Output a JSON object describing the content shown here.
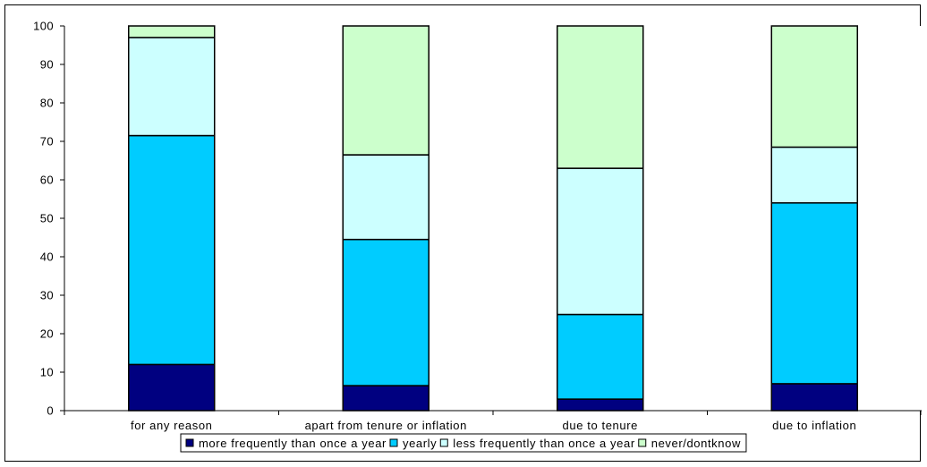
{
  "chart_data": {
    "type": "bar",
    "stacked": true,
    "categories": [
      "for any reason",
      "apart from tenure or inflation",
      "due to tenure",
      "due to inflation"
    ],
    "series": [
      {
        "name": "more frequently than once a year",
        "values": [
          12,
          6.5,
          3,
          7
        ],
        "color": "#000080"
      },
      {
        "name": "yearly",
        "values": [
          59.5,
          38,
          22,
          47
        ],
        "color": "#00ccff"
      },
      {
        "name": "less frequently than once a year",
        "values": [
          25.5,
          22,
          38,
          14.5
        ],
        "color": "#ccffff"
      },
      {
        "name": "never/dontknow",
        "values": [
          3,
          33.5,
          37,
          31.5
        ],
        "color": "#ccffcc"
      }
    ],
    "ylim": [
      0,
      100
    ],
    "yticks": [
      0,
      10,
      20,
      30,
      40,
      50,
      60,
      70,
      80,
      90,
      100
    ],
    "grid": false,
    "legend_position": "bottom"
  }
}
